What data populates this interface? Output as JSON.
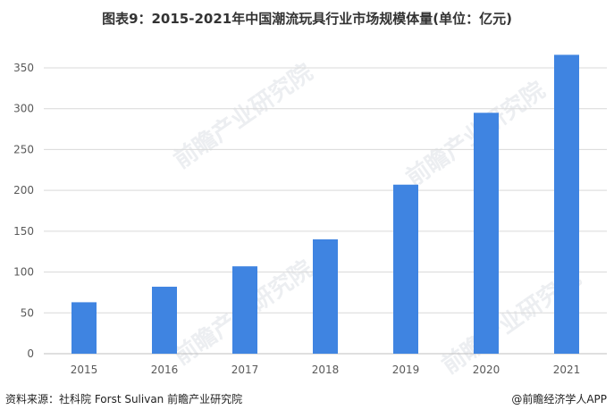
{
  "chart_data": {
    "type": "bar",
    "title": "图表9：2015-2021年中国潮流玩具行业市场规模体量(单位：亿元)",
    "categories": [
      "2015",
      "2016",
      "2017",
      "2018",
      "2019",
      "2020",
      "2021"
    ],
    "values": [
      63,
      82,
      107,
      140,
      207,
      295,
      366
    ],
    "yticks": [
      "0",
      "50",
      "100",
      "150",
      "200",
      "250",
      "300",
      "350"
    ],
    "ylim": [
      0,
      370
    ],
    "xlabel": "",
    "ylabel": "",
    "grid": true,
    "bar_color": "#3f84e1"
  },
  "footer": {
    "source": "资料来源：社科院 Forst Sulivan 前瞻产业研究院",
    "brand": "@前瞻经济学人APP"
  },
  "watermark": "前瞻产业研究院"
}
